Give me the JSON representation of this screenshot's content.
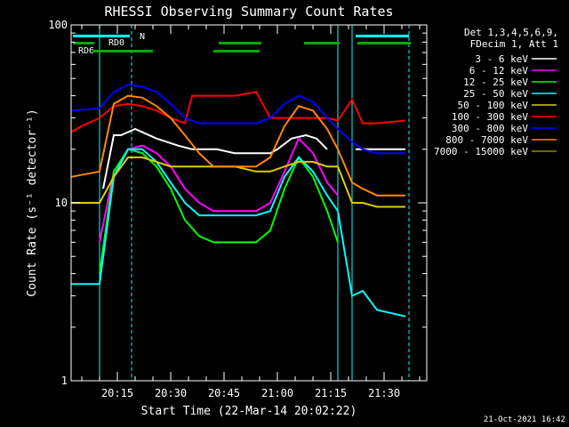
{
  "colors": {
    "background": "#000000",
    "foreground": "#ffffff",
    "s3_6": "#ffffff",
    "s6_12": "#ff00ff",
    "s12_25": "#00ff00",
    "s25_50": "#00ffff",
    "s50_100": "#ddcc00",
    "s100_300": "#ff0000",
    "s300_800": "#0000ff",
    "s800_7000": "#ff8800",
    "s7000_15000": "#888800",
    "flag_green": "#00aa00",
    "flag_cyan": "#00ffff"
  },
  "legend_header": {
    "line1": "Det 1,3,4,5,6,9,",
    "line2": "FDecim 1, Att 1"
  },
  "flags": {
    "n_label": "N",
    "rd0_label": "RD0",
    "rd6_label": "RD6"
  },
  "footer_date": "21-Oct-2021 16:42",
  "chart_data": {
    "type": "line",
    "title": "RHESSI Observing Summary Count Rates",
    "xlabel": "Start Time (22-Mar-14 20:02:22)",
    "ylabel": "Count Rate (s⁻¹ detector⁻¹)",
    "y_scale": "log",
    "ylim": [
      1,
      100
    ],
    "xlim": [
      "20:02",
      "21:42"
    ],
    "x_ticks": [
      "20:15",
      "20:30",
      "20:45",
      "21:00",
      "21:15",
      "21:30"
    ],
    "y_ticks": [
      "1",
      "10",
      "100"
    ],
    "legend_position": "right",
    "eclipse_gaps": [
      [
        "20:02",
        "20:10"
      ],
      [
        "21:17",
        "21:21"
      ]
    ],
    "saa_lines": [
      "20:19",
      "21:37"
    ],
    "series": [
      {
        "name": "3 - 6 keV",
        "color": "#ffffff",
        "x": [
          "20:02",
          "20:10",
          "20:11",
          "20:14",
          "20:16",
          "20:20",
          "20:26",
          "20:32",
          "20:36",
          "20:39",
          "20:43",
          "20:48",
          "20:54",
          "20:58",
          "21:00",
          "21:04",
          "21:08",
          "21:11",
          "21:14",
          "21:17",
          "21:21",
          "21:22",
          "21:24",
          "21:36"
        ],
        "y": [
          null,
          null,
          12,
          24,
          24,
          26,
          23,
          21,
          20,
          20,
          20,
          19,
          19,
          19,
          20,
          23,
          24,
          23,
          20,
          null,
          null,
          20,
          20,
          20
        ]
      },
      {
        "name": "6 - 12 keV",
        "color": "#ff00ff",
        "x": [
          "20:10",
          "20:14",
          "20:18",
          "20:22",
          "20:26",
          "20:30",
          "20:34",
          "20:38",
          "20:42",
          "20:48",
          "20:54",
          "20:58",
          "21:02",
          "21:06",
          "21:10",
          "21:14",
          "21:17"
        ],
        "y": [
          6,
          15,
          20,
          21,
          19,
          16,
          12,
          10,
          9,
          9,
          9,
          10,
          15,
          23,
          19,
          13,
          11
        ]
      },
      {
        "name": "12 - 25 keV",
        "color": "#00ff00",
        "x": [
          "20:10",
          "20:14",
          "20:18",
          "20:22",
          "20:26",
          "20:30",
          "20:34",
          "20:38",
          "20:42",
          "20:48",
          "20:54",
          "20:58",
          "21:02",
          "21:06",
          "21:10",
          "21:14",
          "21:17"
        ],
        "y": [
          4,
          15,
          20,
          19,
          16,
          12,
          8,
          6.5,
          6,
          6,
          6,
          7,
          12,
          18,
          14,
          9,
          6
        ]
      },
      {
        "name": "25 - 50 keV",
        "color": "#00ffff",
        "x": [
          "20:02",
          "20:10",
          "20:14",
          "20:18",
          "20:22",
          "20:26",
          "20:30",
          "20:34",
          "20:38",
          "20:42",
          "20:48",
          "20:54",
          "20:58",
          "21:02",
          "21:06",
          "21:10",
          "21:14",
          "21:17",
          "21:21",
          "21:24",
          "21:28",
          "21:36"
        ],
        "y": [
          3.5,
          3.5,
          14,
          20,
          20,
          17,
          13,
          10,
          8.5,
          8.5,
          8.5,
          8.5,
          9,
          14,
          18,
          15,
          11,
          9,
          3,
          3.2,
          2.5,
          2.3
        ]
      },
      {
        "name": "50 - 100 keV",
        "color": "#ddcc00",
        "x": [
          "20:02",
          "20:10",
          "20:14",
          "20:18",
          "20:22",
          "20:26",
          "20:30",
          "20:34",
          "20:38",
          "20:42",
          "20:48",
          "20:54",
          "20:58",
          "21:02",
          "21:06",
          "21:10",
          "21:14",
          "21:17",
          "21:21",
          "21:24",
          "21:28",
          "21:36"
        ],
        "y": [
          10,
          10,
          14,
          18,
          18,
          17,
          16,
          16,
          16,
          16,
          16,
          15,
          15,
          16,
          17,
          17,
          16,
          16,
          10,
          10,
          9.5,
          9.5
        ]
      },
      {
        "name": "100 - 300 keV",
        "color": "#ff0000",
        "x": [
          "20:02",
          "20:05",
          "20:10",
          "20:14",
          "20:18",
          "20:22",
          "20:26",
          "20:30",
          "20:34",
          "20:36",
          "20:42",
          "20:48",
          "20:54",
          "20:58",
          "21:02",
          "21:06",
          "21:10",
          "21:14",
          "21:17",
          "21:21",
          "21:24",
          "21:28",
          "21:36"
        ],
        "y": [
          25,
          27,
          30,
          35,
          36,
          35,
          33,
          30,
          28,
          40,
          40,
          40,
          42,
          30,
          30,
          30,
          30,
          30,
          29,
          38,
          28,
          28,
          29
        ]
      },
      {
        "name": "300 - 800 keV",
        "color": "#0000ff",
        "x": [
          "20:02",
          "20:10",
          "20:14",
          "20:18",
          "20:22",
          "20:26",
          "20:30",
          "20:34",
          "20:38",
          "20:42",
          "20:48",
          "20:54",
          "20:58",
          "21:02",
          "21:06",
          "21:10",
          "21:14",
          "21:17",
          "21:21",
          "21:24",
          "21:28",
          "21:36"
        ],
        "y": [
          33,
          34,
          42,
          46,
          45,
          42,
          36,
          30,
          28,
          28,
          28,
          28,
          30,
          36,
          40,
          37,
          30,
          26,
          22,
          20,
          19,
          19
        ]
      },
      {
        "name": "800 - 7000 keV",
        "color": "#ff8800",
        "x": [
          "20:02",
          "20:10",
          "20:14",
          "20:18",
          "20:22",
          "20:26",
          "20:30",
          "20:34",
          "20:38",
          "20:42",
          "20:48",
          "20:54",
          "20:58",
          "21:02",
          "21:06",
          "21:10",
          "21:14",
          "21:17",
          "21:21",
          "21:24",
          "21:28",
          "21:36"
        ],
        "y": [
          14,
          15,
          36,
          40,
          39,
          35,
          30,
          24,
          19,
          16,
          16,
          16,
          18,
          27,
          35,
          33,
          26,
          20,
          13,
          12,
          11,
          11
        ]
      },
      {
        "name": "7000 - 15000 keV",
        "color": "#888800",
        "x": [
          "20:10",
          "20:14",
          "20:18",
          "20:22",
          "20:26",
          "20:30",
          "20:34"
        ],
        "y": [
          null,
          null,
          null,
          null,
          null,
          null,
          null
        ]
      }
    ]
  }
}
